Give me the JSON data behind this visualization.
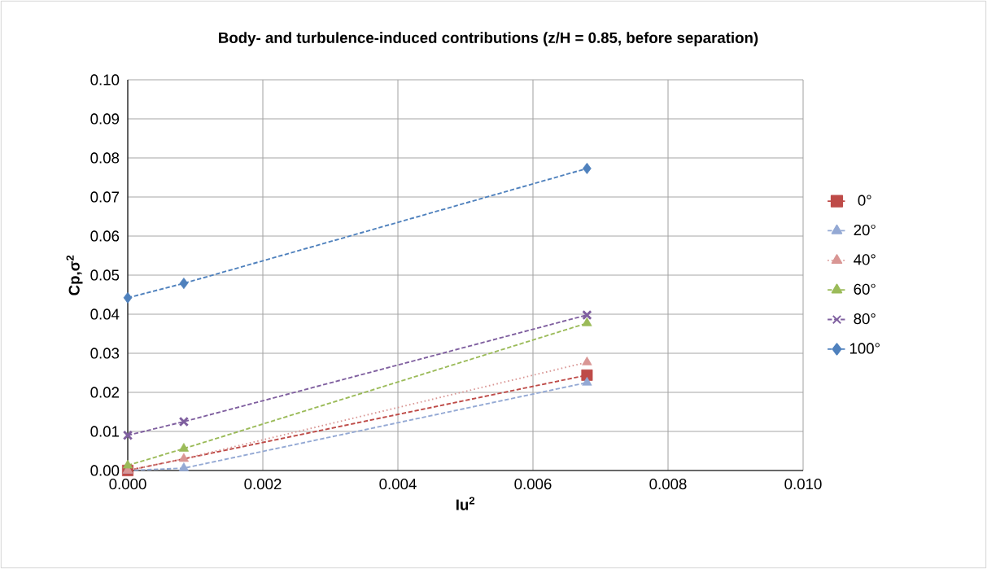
{
  "chart_data": {
    "type": "line",
    "title": "Body- and turbulence-induced contributions (z/H = 0.85, before separation)",
    "xlabel": "Iu$^{2}$",
    "ylabel": "Cp,σ$^{2}$",
    "x": [
      0,
      0.00083,
      0.0068
    ],
    "series": [
      {
        "name": "0°",
        "color": "#be4b48",
        "marker": "square",
        "line_style": "dashed",
        "values": [
          0,
          null,
          0.0244
        ]
      },
      {
        "name": "20°",
        "color": "#94a9d4",
        "marker": "triangle",
        "line_style": "dashed",
        "values": [
          0,
          0.0006,
          0.0225
        ]
      },
      {
        "name": "40°",
        "color": "#d99694",
        "marker": "triangle",
        "line_style": "dotted",
        "values": [
          0,
          0.003,
          0.0277
        ]
      },
      {
        "name": "60°",
        "color": "#9bbb59",
        "marker": "triangle",
        "line_style": "dashed",
        "values": [
          0.0013,
          0.0056,
          0.0377
        ]
      },
      {
        "name": "80°",
        "color": "#7f5f9f",
        "marker": "cross",
        "line_style": "dashed",
        "values": [
          0.009,
          0.0125,
          0.0398
        ]
      },
      {
        "name": "100°",
        "color": "#4f81bd",
        "marker": "diamond",
        "line_style": "dashed",
        "values": [
          0.0442,
          0.0479,
          0.0773
        ]
      }
    ],
    "xlim": [
      0,
      0.01
    ],
    "xticks": [
      {
        "value": 0,
        "label": "0.000"
      },
      {
        "value": 0.002,
        "label": "0.002"
      },
      {
        "value": 0.004,
        "label": "0.004"
      },
      {
        "value": 0.006,
        "label": "0.006"
      },
      {
        "value": 0.008,
        "label": "0.008"
      },
      {
        "value": 0.01,
        "label": "0.010"
      }
    ],
    "ylim": [
      0,
      0.1
    ],
    "yticks": [
      {
        "value": 0,
        "label": "0.00"
      },
      {
        "value": 0.01,
        "label": "0.01"
      },
      {
        "value": 0.02,
        "label": "0.02"
      },
      {
        "value": 0.03,
        "label": "0.03"
      },
      {
        "value": 0.04,
        "label": "0.04"
      },
      {
        "value": 0.05,
        "label": "0.05"
      },
      {
        "value": 0.06,
        "label": "0.06"
      },
      {
        "value": 0.07,
        "label": "0.07"
      },
      {
        "value": 0.08,
        "label": "0.08"
      },
      {
        "value": 0.09,
        "label": "0.09"
      },
      {
        "value": 0.1,
        "label": "0.10"
      }
    ],
    "grid": true,
    "legend": "right"
  }
}
